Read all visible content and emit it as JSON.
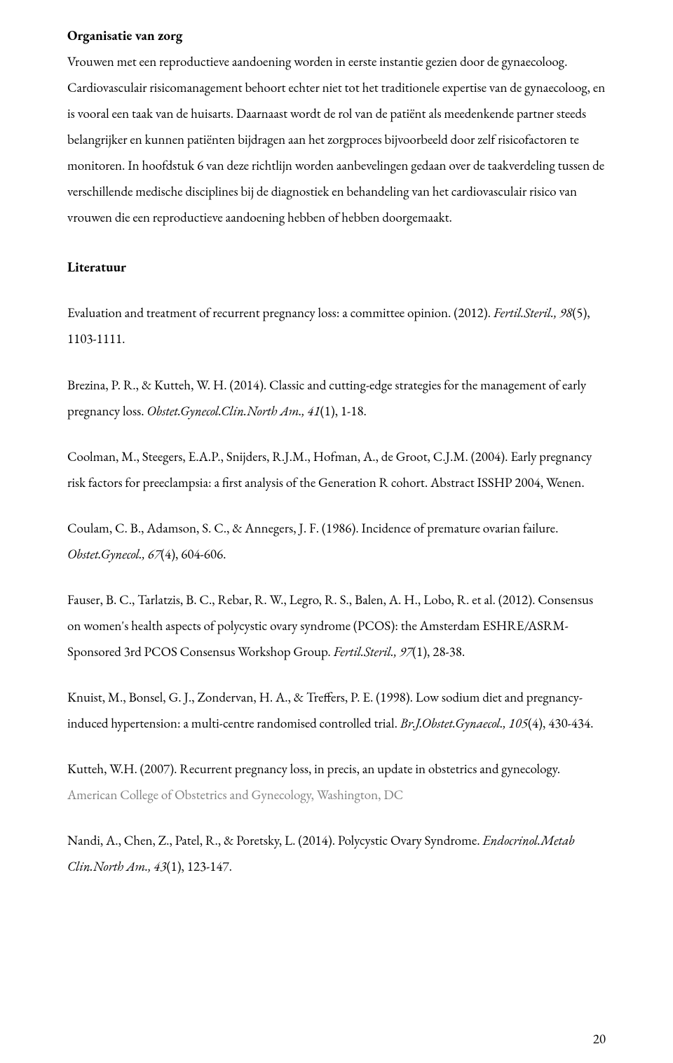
{
  "section1": {
    "title": "Organisatie van zorg",
    "paragraph": "Vrouwen met een reproductieve aandoening worden in eerste instantie gezien door de gynaecoloog. Cardiovasculair risicomanagement behoort echter niet tot het traditionele expertise van de gynaecoloog, en is vooral een taak van de huisarts. Daarnaast wordt de rol van de patiënt als meedenkende partner steeds belangrijker en kunnen patiënten bijdragen aan het zorgproces bijvoorbeeld  door zelf risicofactoren te monitoren. In hoofdstuk 6 van deze richtlijn worden aanbevelingen gedaan over de taakverdeling tussen de verschillende medische disciplines bij de diagnostiek en behandeling van het cardiovasculair risico van vrouwen die een reproductieve aandoening hebben of hebben doorgemaakt."
  },
  "section2": {
    "title": "Literatuur"
  },
  "refs": {
    "r1_a": "Evaluation and treatment of recurrent pregnancy loss: a committee opinion. (2012). ",
    "r1_i": "Fertil.Steril., 98",
    "r1_c": "(5), 1103-1111.",
    "r2_a": "Brezina, P. R., & Kutteh, W. H. (2014). Classic and cutting-edge strategies for the management of early pregnancy loss. ",
    "r2_i": "Obstet.Gynecol.Clin.North Am., 41",
    "r2_c": "(1), 1-18.",
    "r3_a": "Coolman, M., Steegers, E.A.P., Snijders, R.J.M., Hofman, A., de Groot, C.J.M. (2004). Early pregnancy risk factors for preeclampsia: a first analysis of the Generation R cohort. Abstract ISSHP 2004, Wenen.",
    "r4_a": "Coulam, C. B., Adamson, S. C., & Annegers, J. F. (1986). Incidence of premature ovarian failure. ",
    "r4_i": "Obstet.Gynecol., 67",
    "r4_c": "(4), 604-606.",
    "r5_a": "Fauser, B. C., Tarlatzis, B. C., Rebar, R. W., Legro, R. S., Balen, A. H., Lobo, R. et al. (2012). Consensus on women's health aspects of polycystic ovary syndrome (PCOS): the Amsterdam ESHRE/ASRM-Sponsored 3rd PCOS Consensus Workshop Group. ",
    "r5_i": "Fertil.Steril., 97",
    "r5_c": "(1), 28-38.",
    "r6_a": "Knuist, M., Bonsel, G. J., Zondervan, H. A., & Treffers, P. E. (1998). Low sodium diet and pregnancy-induced hypertension: a multi-centre randomised controlled trial. ",
    "r6_i": "Br.J.Obstet.Gynaecol., 105",
    "r6_c": "(4), 430-434.",
    "r7_a": "Kutteh, W.H. (2007). Recurrent pregnancy loss, in precis, an update in obstetrics and gynecology. ",
    "r7_b": "American College of Obstetrics and Gynecology, Washington, DC",
    "r8_a": "Nandi, A., Chen, Z., Patel, R., & Poretsky, L. (2014). Polycystic Ovary Syndrome. ",
    "r8_i": "Endocrinol.Metab Clin.North Am., 43",
    "r8_c": "(1), 123-147."
  },
  "pageNumber": "20"
}
